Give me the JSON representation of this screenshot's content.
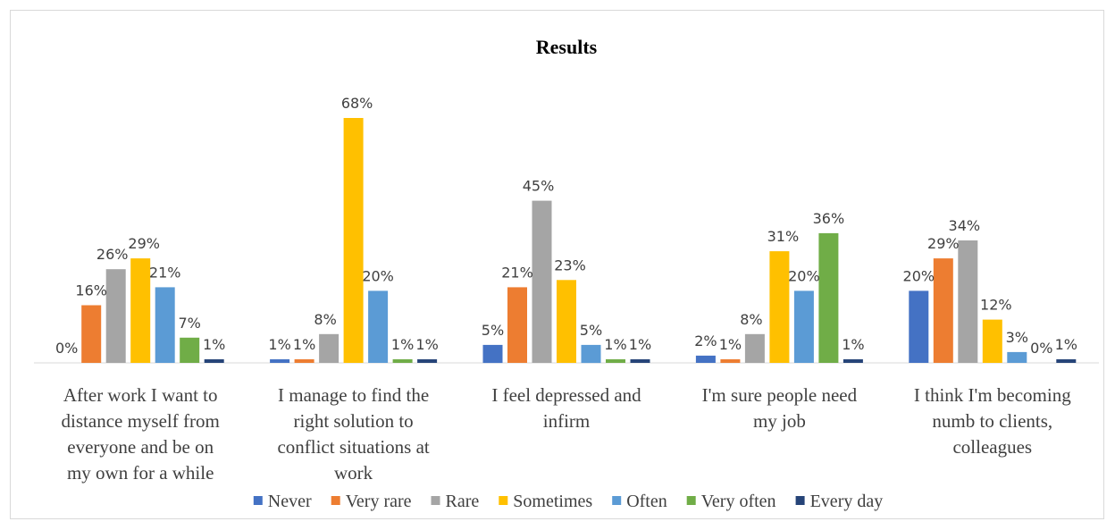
{
  "chart_data": {
    "type": "bar",
    "title": "Results",
    "xlabel": "",
    "ylabel": "",
    "ylim": [
      0,
      70
    ],
    "grid": false,
    "legend_position": "bottom",
    "categories": [
      [
        "After work I want to",
        "distance myself from",
        "everyone and be on",
        "my own for a while"
      ],
      [
        "I manage to find the",
        "right solution to",
        "conflict situations at",
        "work"
      ],
      [
        "I feel depressed and",
        "infirm"
      ],
      [
        "I'm sure people need",
        "my job"
      ],
      [
        "I think I'm becoming",
        "numb to clients,",
        "colleagues"
      ]
    ],
    "series": [
      {
        "name": "Never",
        "color": "#4472C4",
        "values": [
          0,
          1,
          5,
          2,
          20
        ],
        "labels": [
          "0%",
          "1%",
          "5%",
          "2%",
          "20%"
        ]
      },
      {
        "name": "Very rare",
        "color": "#ED7D31",
        "values": [
          16,
          1,
          21,
          1,
          29
        ],
        "labels": [
          "16%",
          "1%",
          "21%",
          "1%",
          "29%"
        ]
      },
      {
        "name": "Rare",
        "color": "#A5A5A5",
        "values": [
          26,
          8,
          45,
          8,
          34
        ],
        "labels": [
          "26%",
          "8%",
          "45%",
          "8%",
          "34%"
        ]
      },
      {
        "name": "Sometimes",
        "color": "#FFC000",
        "values": [
          29,
          68,
          23,
          31,
          12
        ],
        "labels": [
          "29%",
          "68%",
          "23%",
          "31%",
          "12%"
        ]
      },
      {
        "name": "Often",
        "color": "#5B9BD5",
        "values": [
          21,
          20,
          5,
          20,
          3
        ],
        "labels": [
          "21%",
          "20%",
          "5%",
          "20%",
          "3%"
        ]
      },
      {
        "name": "Very often",
        "color": "#70AD47",
        "values": [
          7,
          1,
          1,
          36,
          0
        ],
        "labels": [
          "7%",
          "1%",
          "1%",
          "36%",
          "0%"
        ]
      },
      {
        "name": "Every day",
        "color": "#264478",
        "values": [
          1,
          1,
          1,
          1,
          1
        ],
        "labels": [
          "1%",
          "1%",
          "1%",
          "1%",
          "1%"
        ]
      }
    ]
  }
}
